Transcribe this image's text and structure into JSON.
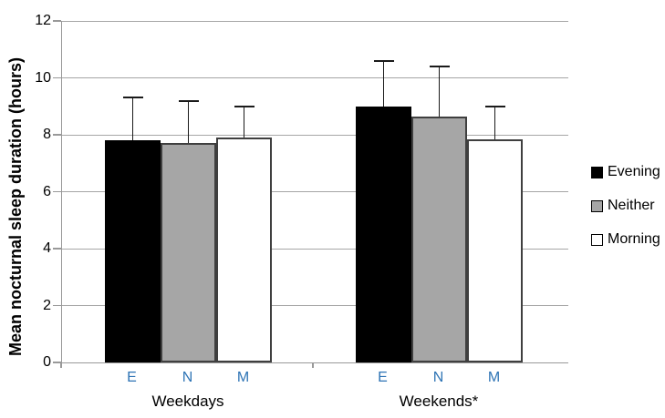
{
  "chart_data": {
    "type": "bar",
    "title": "",
    "ylabel": "Mean nocturnal sleep duration (hours)",
    "xlabel": "",
    "ylim": [
      0,
      12
    ],
    "yticks": [
      0,
      2,
      4,
      6,
      8,
      10,
      12
    ],
    "grid": true,
    "legend_position": "right",
    "categories": [
      "Weekdays",
      "Weekends*"
    ],
    "bar_sublabels": [
      "E",
      "N",
      "M"
    ],
    "series": [
      {
        "name": "Evening",
        "fill": "#000000",
        "values": [
          7.8,
          9.0
        ],
        "error_upper": [
          9.3,
          10.6
        ]
      },
      {
        "name": "Neither",
        "fill": "#a6a6a6",
        "values": [
          7.7,
          8.65
        ],
        "error_upper": [
          9.2,
          10.4
        ]
      },
      {
        "name": "Morning",
        "fill": "#ffffff",
        "values": [
          7.9,
          7.85
        ],
        "error_upper": [
          9.0,
          9.0
        ]
      }
    ]
  },
  "colors": {
    "background": "#ffffff",
    "axis": "#999999",
    "gridline": "#a6a6a6",
    "bar_border": "#3f3f3f",
    "error_bar": "#1a1a1a",
    "sublabel_blue": "#2e74b5",
    "text": "#000000"
  }
}
